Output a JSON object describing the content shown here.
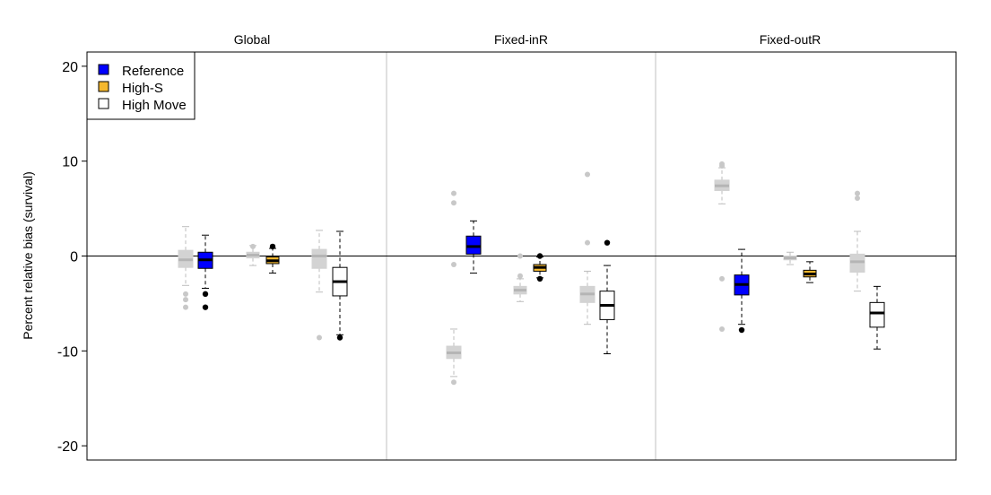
{
  "chart_data": {
    "type": "boxplot",
    "ylabel": "Percent relative bias (survival)",
    "ylim": [
      -21.5,
      21.5
    ],
    "yticks": [
      -20,
      -10,
      0,
      10,
      20
    ],
    "reference_line": 0,
    "grid": false,
    "panels": [
      "Global",
      "Fixed-inR",
      "Fixed-outR"
    ],
    "legend": {
      "placement": "top-left",
      "entries": [
        {
          "label": "Reference",
          "color": "#0000ff"
        },
        {
          "label": "High-S",
          "color": "#f5b82e"
        },
        {
          "label": "High Move",
          "color": "#ffffff"
        }
      ]
    },
    "colors": {
      "comparison_fill": "#d3d3d3",
      "comparison_line": "#bdbdbd",
      "outline": "#000000",
      "panel_divider": "#c0c0c0"
    },
    "boxes": [
      {
        "panel": 0,
        "scenario": "Reference",
        "kind": "comparison",
        "whislo": -3.1,
        "q1": -1.2,
        "med": -0.4,
        "q3": 0.6,
        "whishi": 3.1,
        "outliers": [
          -4.0,
          -4.6,
          -5.4
        ]
      },
      {
        "panel": 0,
        "scenario": "Reference",
        "kind": "scenario",
        "whislo": -3.4,
        "q1": -1.3,
        "med": -0.4,
        "q3": 0.4,
        "whishi": 2.2,
        "outliers": [
          -4.0,
          -5.4
        ]
      },
      {
        "panel": 0,
        "scenario": "High-S",
        "kind": "comparison",
        "whislo": -1.0,
        "q1": -0.2,
        "med": 0.1,
        "q3": 0.4,
        "whishi": 1.1,
        "outliers": [
          1.0
        ]
      },
      {
        "panel": 0,
        "scenario": "High-S",
        "kind": "scenario",
        "whislo": -1.8,
        "q1": -0.8,
        "med": -0.5,
        "q3": -0.1,
        "whishi": 0.8,
        "outliers": [
          1.0
        ]
      },
      {
        "panel": 0,
        "scenario": "High Move",
        "kind": "comparison",
        "whislo": -3.8,
        "q1": -1.3,
        "med": 0.0,
        "q3": 0.7,
        "whishi": 2.7,
        "outliers": [
          -8.6
        ]
      },
      {
        "panel": 0,
        "scenario": "High Move",
        "kind": "scenario",
        "whislo": -8.3,
        "q1": -4.2,
        "med": -2.7,
        "q3": -1.2,
        "whishi": 2.6,
        "outliers": [
          -8.6
        ]
      },
      {
        "panel": 1,
        "scenario": "Reference",
        "kind": "comparison",
        "whislo": -12.7,
        "q1": -10.8,
        "med": -10.2,
        "q3": -9.5,
        "whishi": -7.7,
        "outliers": [
          -13.3
        ]
      },
      {
        "panel": 1,
        "scenario": "Reference",
        "kind": "scenario",
        "whislo": -1.8,
        "q1": 0.2,
        "med": 1.0,
        "q3": 2.1,
        "whishi": 3.7,
        "outliers": []
      },
      {
        "panel": 1,
        "scenario": "Reference",
        "kind": "comparison-outliers",
        "outliers": [
          6.6,
          5.6,
          -0.9
        ]
      },
      {
        "panel": 1,
        "scenario": "High-S",
        "kind": "comparison",
        "whislo": -4.8,
        "q1": -4.0,
        "med": -3.6,
        "q3": -3.2,
        "whishi": -2.4,
        "outliers": [
          -2.1,
          0.0
        ]
      },
      {
        "panel": 1,
        "scenario": "High-S",
        "kind": "scenario",
        "whislo": -2.3,
        "q1": -1.6,
        "med": -1.2,
        "q3": -0.9,
        "whishi": -0.1,
        "outliers": [
          -2.4,
          0.0
        ]
      },
      {
        "panel": 1,
        "scenario": "High Move",
        "kind": "comparison",
        "whislo": -7.2,
        "q1": -4.9,
        "med": -4.0,
        "q3": -3.2,
        "whishi": -1.6,
        "outliers": [
          1.4,
          8.6
        ]
      },
      {
        "panel": 1,
        "scenario": "High Move",
        "kind": "scenario",
        "whislo": -10.3,
        "q1": -6.7,
        "med": -5.2,
        "q3": -3.7,
        "whishi": -1.0,
        "outliers": [
          1.4
        ]
      },
      {
        "panel": 2,
        "scenario": "Reference",
        "kind": "comparison",
        "whislo": 5.5,
        "q1": 6.9,
        "med": 7.4,
        "q3": 8.0,
        "whishi": 9.3,
        "outliers": [
          9.5,
          9.7,
          -2.4,
          -7.7
        ]
      },
      {
        "panel": 2,
        "scenario": "Reference",
        "kind": "scenario",
        "whislo": -7.2,
        "q1": -4.1,
        "med": -3.0,
        "q3": -2.0,
        "whishi": 0.7,
        "outliers": [
          -7.8
        ]
      },
      {
        "panel": 2,
        "scenario": "High-S",
        "kind": "comparison",
        "whislo": -0.9,
        "q1": -0.4,
        "med": -0.2,
        "q3": 0.0,
        "whishi": 0.4,
        "outliers": []
      },
      {
        "panel": 2,
        "scenario": "High-S",
        "kind": "scenario",
        "whislo": -2.8,
        "q1": -2.2,
        "med": -1.9,
        "q3": -1.5,
        "whishi": -0.6,
        "outliers": []
      },
      {
        "panel": 2,
        "scenario": "High Move",
        "kind": "comparison",
        "whislo": -3.7,
        "q1": -1.7,
        "med": -0.6,
        "q3": 0.2,
        "whishi": 2.6,
        "outliers": [
          6.1,
          6.6
        ]
      },
      {
        "panel": 2,
        "scenario": "High Move",
        "kind": "scenario",
        "whislo": -9.8,
        "q1": -7.5,
        "med": -6.0,
        "q3": -4.9,
        "whishi": -3.2,
        "outliers": []
      }
    ]
  }
}
